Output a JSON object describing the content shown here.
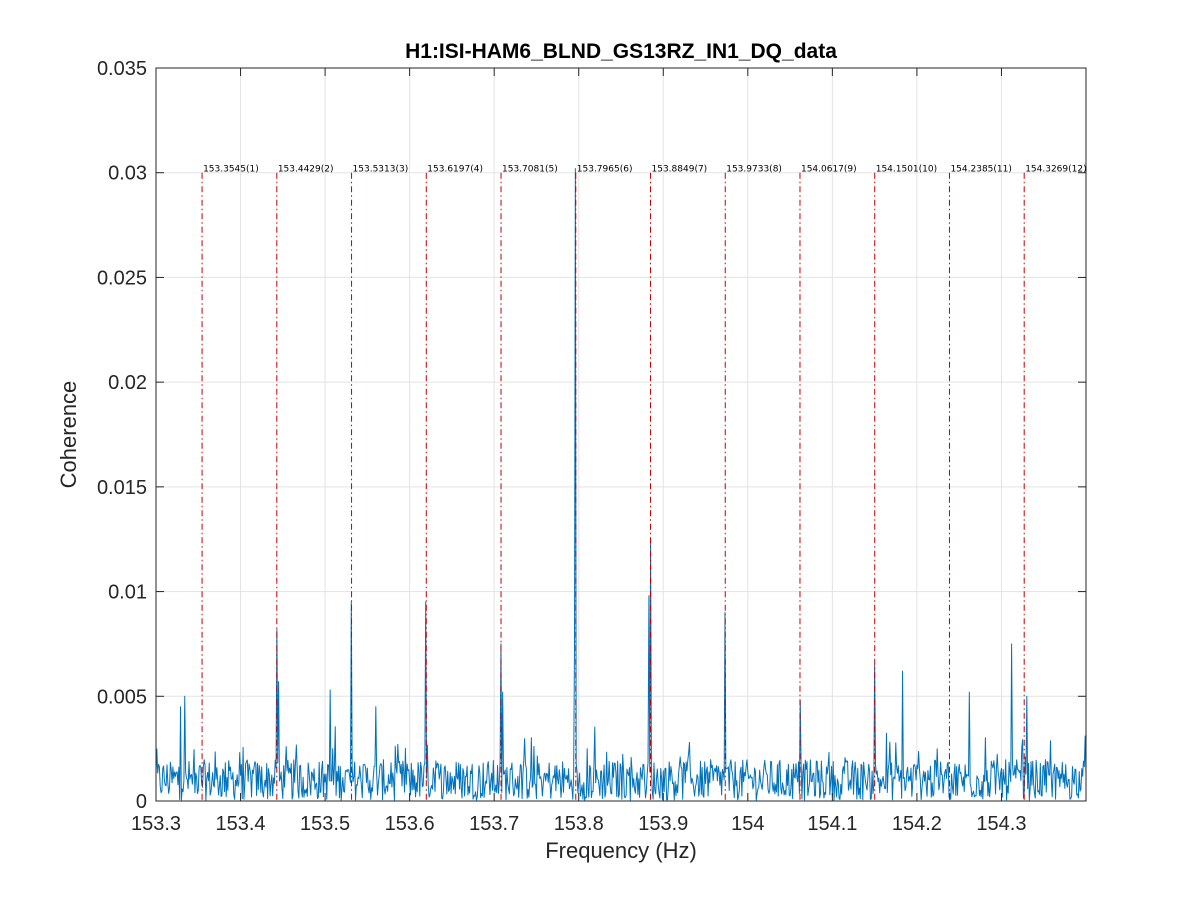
{
  "chart_data": {
    "type": "line",
    "title": "H1:ISI-HAM6_BLND_GS13RZ_IN1_DQ_data",
    "xlabel": "Frequency (Hz)",
    "ylabel": "Coherence",
    "xlim": [
      153.3,
      154.4
    ],
    "ylim": [
      0,
      0.035
    ],
    "grid": true,
    "x_ticks": [
      153.3,
      153.4,
      153.5,
      153.6,
      153.7,
      153.8,
      153.9,
      154.0,
      154.1,
      154.2,
      154.3
    ],
    "x_tick_labels": [
      "153.3",
      "153.4",
      "153.5",
      "153.6",
      "153.7",
      "153.8",
      "153.9",
      "154",
      "154.1",
      "154.2",
      "154.3"
    ],
    "y_ticks": [
      0,
      0.005,
      0.01,
      0.015,
      0.02,
      0.025,
      0.03,
      0.035
    ],
    "y_tick_labels": [
      "0",
      "0.005",
      "0.01",
      "0.015",
      "0.02",
      "0.025",
      "0.03",
      "0.035"
    ],
    "series_color": "#0072bd",
    "harmonic_color": "#c00000",
    "harmonic_line_top": 0.03,
    "noise_floor": {
      "baseline": 0.001,
      "amplitude": 0.0013,
      "step": 0.001
    },
    "peaks": [
      {
        "x": 153.329,
        "y": 0.0045
      },
      {
        "x": 153.334,
        "y": 0.005
      },
      {
        "x": 153.443,
        "y": 0.0082
      },
      {
        "x": 153.445,
        "y": 0.0057
      },
      {
        "x": 153.506,
        "y": 0.0053
      },
      {
        "x": 153.531,
        "y": 0.0095
      },
      {
        "x": 153.56,
        "y": 0.0045
      },
      {
        "x": 153.619,
        "y": 0.0095
      },
      {
        "x": 153.708,
        "y": 0.0075
      },
      {
        "x": 153.71,
        "y": 0.0052
      },
      {
        "x": 153.7965,
        "y": 0.0302
      },
      {
        "x": 153.795,
        "y": 0.0075
      },
      {
        "x": 153.885,
        "y": 0.0125
      },
      {
        "x": 153.883,
        "y": 0.0098
      },
      {
        "x": 153.973,
        "y": 0.009
      },
      {
        "x": 154.062,
        "y": 0.0048
      },
      {
        "x": 154.15,
        "y": 0.0065
      },
      {
        "x": 154.183,
        "y": 0.0062
      },
      {
        "x": 154.262,
        "y": 0.0052
      },
      {
        "x": 154.312,
        "y": 0.0075
      },
      {
        "x": 154.33,
        "y": 0.005
      }
    ],
    "harmonics": [
      {
        "x": 153.3545,
        "label": "153.3545(1)"
      },
      {
        "x": 153.4429,
        "label": "153.4429(2)"
      },
      {
        "x": 153.5313,
        "label": "153.5313(3)"
      },
      {
        "x": 153.6197,
        "label": "153.6197(4)"
      },
      {
        "x": 153.7081,
        "label": "153.7081(5)"
      },
      {
        "x": 153.7965,
        "label": "153.7965(6)"
      },
      {
        "x": 153.8849,
        "label": "153.8849(7)"
      },
      {
        "x": 153.9733,
        "label": "153.9733(8)"
      },
      {
        "x": 154.0617,
        "label": "154.0617(9)"
      },
      {
        "x": 154.1501,
        "label": "154.1501(10)"
      },
      {
        "x": 154.2385,
        "label": "154.2385(11)"
      },
      {
        "x": 154.3269,
        "label": "154.3269(12)"
      }
    ]
  }
}
